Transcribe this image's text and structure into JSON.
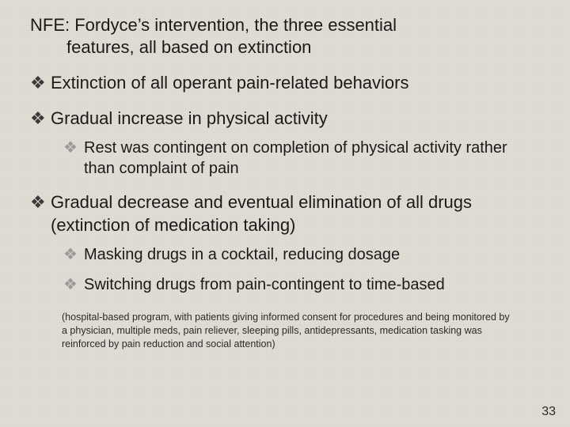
{
  "background_color": "#e1ddd4",
  "text_color": "#1a1a1a",
  "bullet_glyph": "❖",
  "bullet_dark_color": "#3a3a3a",
  "bullet_light_color": "#9a9a9a",
  "title": {
    "line1": "NFE: Fordyce’s intervention, the three essential",
    "line2": "features, all based on extinction",
    "fontsize": 22
  },
  "items": [
    {
      "text": "Extinction of all operant pain-related behaviors",
      "sub": []
    },
    {
      "text": "Gradual increase in physical activity",
      "sub": [
        {
          "text": "Rest was contingent on completion of physical activity rather than complaint of pain"
        }
      ]
    },
    {
      "text": "Gradual decrease and eventual elimination of all drugs (extinction of medication taking)",
      "sub": [
        {
          "text": "Masking drugs in a cocktail, reducing dosage"
        },
        {
          "text": "Switching drugs from pain-contingent to time-based"
        }
      ]
    }
  ],
  "footnote": "(hospital-based program, with patients giving informed consent for procedures and being monitored by a physician, multiple meds, pain reliever, sleeping pills, antidepressants, medication tasking was reinforced by pain reduction and social attention)",
  "page_number": "33",
  "fontsizes": {
    "top_item": 22,
    "sub_item": 20,
    "footnote": 12.5,
    "pagenum": 16
  }
}
